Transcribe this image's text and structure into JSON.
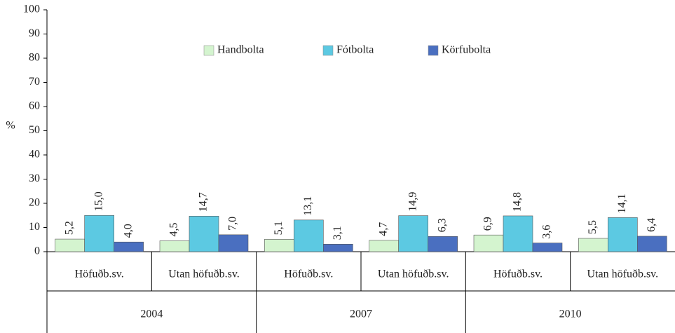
{
  "chart_data": {
    "type": "bar",
    "y_label": "%",
    "categories": [
      "Höfuðb.sv.",
      "Utan höfuðb.sv.",
      "Höfuðb.sv.",
      "Utan höfuðb.sv.",
      "Höfuðb.sv.",
      "Utan höfuðb.sv."
    ],
    "groups": [
      "2004",
      "2007",
      "2010"
    ],
    "series": [
      {
        "name": "Handbolta",
        "color": "#d4f4cf",
        "values": [
          5.2,
          4.5,
          5.1,
          4.7,
          6.9,
          5.5
        ],
        "value_labels": [
          "5,2",
          "4,5",
          "5,1",
          "4,7",
          "6,9",
          "5,5"
        ]
      },
      {
        "name": "Fótbolta",
        "color": "#5cc9e2",
        "values": [
          15.0,
          14.7,
          13.1,
          14.9,
          14.8,
          14.1
        ],
        "value_labels": [
          "15,0",
          "14,7",
          "13,1",
          "14,9",
          "14,8",
          "14,1"
        ]
      },
      {
        "name": "Körfubolta",
        "color": "#4a6fc0",
        "values": [
          4.0,
          7.0,
          3.1,
          6.3,
          3.6,
          6.4
        ],
        "value_labels": [
          "4,0",
          "7,0",
          "3,1",
          "6,3",
          "3,6",
          "6,4"
        ]
      }
    ],
    "ylim": [
      0,
      100
    ],
    "yticks": [
      0,
      10,
      20,
      30,
      40,
      50,
      60,
      70,
      80,
      90,
      100
    ],
    "legend": "top"
  }
}
